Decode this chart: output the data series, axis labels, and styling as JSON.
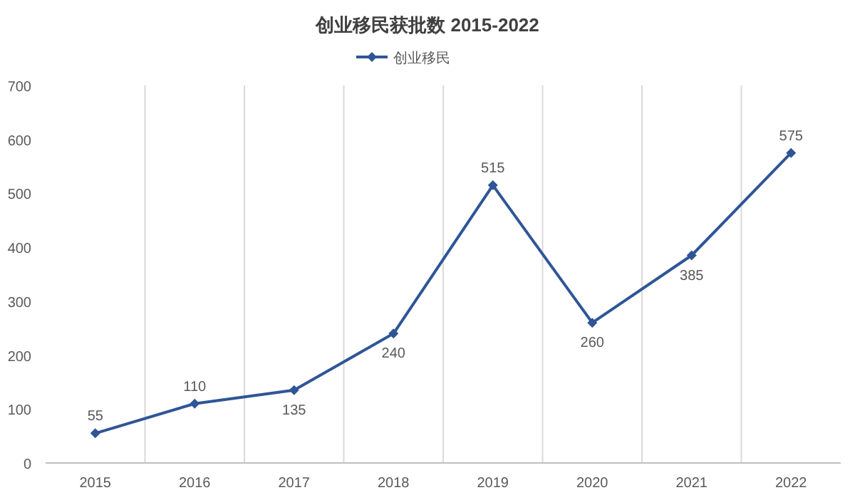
{
  "chart_data": {
    "type": "line",
    "title": "创业移民获批数 2015-2022",
    "categories": [
      "2015",
      "2016",
      "2017",
      "2018",
      "2019",
      "2020",
      "2021",
      "2022"
    ],
    "series": [
      {
        "name": "创业移民",
        "color": "#2f5597",
        "values": [
          55,
          110,
          135,
          240,
          515,
          260,
          385,
          575
        ]
      }
    ],
    "ylim": [
      0,
      700
    ],
    "yticks": [
      0,
      100,
      200,
      300,
      400,
      500,
      600,
      700
    ],
    "grid": "x",
    "legend": "top",
    "marker": "diamond",
    "line_style": "solid",
    "data_labels": true
  }
}
